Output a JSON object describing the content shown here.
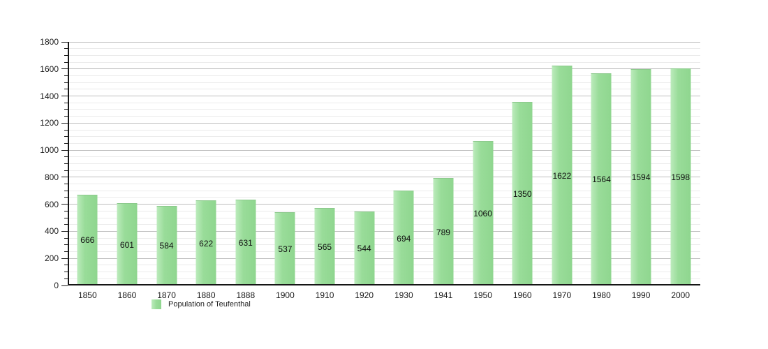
{
  "chart_data": {
    "type": "bar",
    "title": "",
    "xlabel": "",
    "ylabel": "",
    "categories": [
      "1850",
      "1860",
      "1870",
      "1880",
      "1888",
      "1900",
      "1910",
      "1920",
      "1930",
      "1941",
      "1950",
      "1960",
      "1970",
      "1980",
      "1990",
      "2000"
    ],
    "series": [
      {
        "name": "Population of Teufenthal",
        "values": [
          666,
          601,
          584,
          622,
          631,
          537,
          565,
          544,
          694,
          789,
          1060,
          1350,
          1622,
          1564,
          1594,
          1598
        ]
      }
    ],
    "ylim": [
      0,
      1800
    ],
    "y_major_step": 200,
    "y_minor_step": 50,
    "grid": "on",
    "value_labels": "inside-middle",
    "legend_position": "bottom-left",
    "bar_color": "#96db96",
    "bar_edge_color": "#8cc98c",
    "major_grid_color": "#bdbdbd",
    "minor_grid_color": "#ebebeb",
    "axis_color": "#151515"
  },
  "legend": {
    "label": "Population of Teufenthal",
    "swatch_color": "#96db96"
  }
}
